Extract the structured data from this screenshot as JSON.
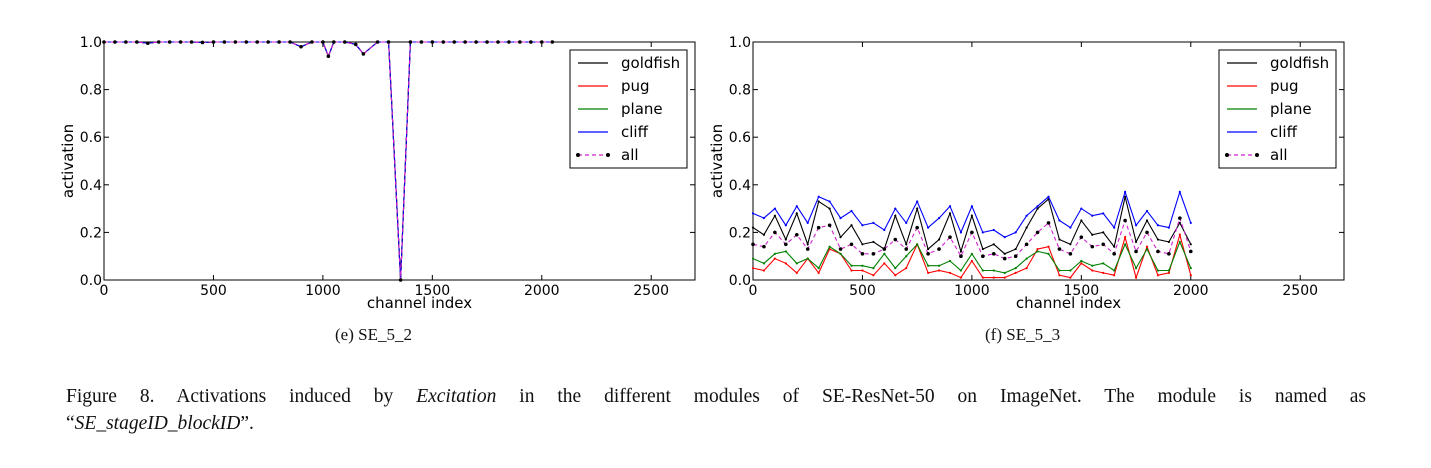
{
  "figure": {
    "label": "Figure 8.",
    "caption_pre": "Activations induced by ",
    "caption_em": "Excitation",
    "caption_mid": " in the different modules of SE-ResNet-50 on ImageNet.  The module is named as",
    "caption_open_quote": "“",
    "caption_em2": "SE_stageID_blockID",
    "caption_close": "”."
  },
  "colors": {
    "goldfish": "#000000",
    "pug": "#ff0000",
    "plane": "#008000",
    "cliff": "#0000ff",
    "all": "#d020d0"
  },
  "chart_data": [
    {
      "type": "line",
      "caption": "(e)  SE_5_2",
      "xlabel": "channel index",
      "ylabel": "activation",
      "xlim": [
        0,
        2700
      ],
      "ylim": [
        0,
        1.0
      ],
      "xticks": [
        "0",
        "500",
        "1000",
        "1500",
        "2000",
        "2500"
      ],
      "yticks": [
        "0.0",
        "0.2",
        "0.4",
        "0.6",
        "0.8",
        "1.0"
      ],
      "legend_position": "top-right",
      "x": [
        0,
        50,
        100,
        150,
        200,
        250,
        300,
        350,
        400,
        450,
        500,
        550,
        600,
        650,
        700,
        750,
        800,
        850,
        900,
        950,
        1000,
        1025,
        1050,
        1100,
        1150,
        1185,
        1250,
        1300,
        1355,
        1400,
        1450,
        1500,
        1550,
        1600,
        1650,
        1700,
        1750,
        1800,
        1850,
        1900,
        1950,
        2000,
        2048
      ],
      "series": [
        {
          "name": "goldfish",
          "values": [
            1,
            1,
            1,
            1,
            0.995,
            1,
            1,
            1,
            1,
            0.998,
            1,
            1,
            1,
            1,
            1,
            1,
            1,
            1,
            0.98,
            1,
            1,
            0.94,
            1,
            1,
            0.99,
            0.95,
            1,
            1,
            0.0,
            1,
            1,
            1,
            1,
            1,
            1,
            1,
            1,
            1,
            1,
            1,
            1,
            1,
            1
          ]
        },
        {
          "name": "pug",
          "values": [
            1,
            1,
            1,
            1,
            0.995,
            1,
            1,
            1,
            1,
            0.998,
            1,
            1,
            1,
            1,
            1,
            1,
            1,
            1,
            0.98,
            1,
            1,
            0.94,
            1,
            1,
            0.99,
            0.95,
            1,
            1,
            0.0,
            1,
            1,
            1,
            1,
            1,
            1,
            1,
            1,
            1,
            1,
            1,
            1,
            1,
            1
          ]
        },
        {
          "name": "plane",
          "values": [
            1,
            1,
            1,
            1,
            0.995,
            1,
            1,
            1,
            1,
            0.998,
            1,
            1,
            1,
            1,
            1,
            1,
            1,
            1,
            0.98,
            1,
            1,
            0.94,
            1,
            1,
            0.99,
            0.95,
            1,
            1,
            0.0,
            1,
            1,
            1,
            1,
            1,
            1,
            1,
            1,
            1,
            1,
            1,
            1,
            1,
            1
          ]
        },
        {
          "name": "cliff",
          "values": [
            1,
            1,
            1,
            1,
            0.995,
            1,
            1,
            1,
            1,
            0.998,
            1,
            1,
            1,
            1,
            1,
            1,
            1,
            1,
            0.98,
            1,
            1,
            0.94,
            1,
            1,
            0.99,
            0.95,
            1,
            1,
            0.0,
            1,
            1,
            1,
            1,
            1,
            1,
            1,
            1,
            1,
            1,
            1,
            1,
            1,
            1
          ]
        },
        {
          "name": "all",
          "values": [
            1,
            1,
            1,
            1,
            0.995,
            1,
            1,
            1,
            1,
            0.998,
            1,
            1,
            1,
            1,
            1,
            1,
            1,
            1,
            0.98,
            1,
            1,
            0.94,
            1,
            1,
            0.99,
            0.95,
            1,
            1,
            0.0,
            1,
            1,
            1,
            1,
            1,
            1,
            1,
            1,
            1,
            1,
            1,
            1,
            1,
            1
          ]
        }
      ]
    },
    {
      "type": "line",
      "caption": "(f)  SE_5_3",
      "xlabel": "channel index",
      "ylabel": "activation",
      "xlim": [
        0,
        2700
      ],
      "ylim": [
        0,
        1.0
      ],
      "xticks": [
        "0",
        "500",
        "1000",
        "1500",
        "2000",
        "2500"
      ],
      "yticks": [
        "0.0",
        "0.2",
        "0.4",
        "0.6",
        "0.8",
        "1.0"
      ],
      "legend_position": "top-right",
      "x": [
        0,
        50,
        100,
        150,
        200,
        250,
        300,
        350,
        400,
        450,
        500,
        550,
        600,
        650,
        700,
        750,
        800,
        850,
        900,
        950,
        1000,
        1050,
        1100,
        1150,
        1200,
        1250,
        1300,
        1350,
        1400,
        1450,
        1500,
        1550,
        1600,
        1650,
        1700,
        1750,
        1800,
        1850,
        1900,
        1950,
        2000
      ],
      "series": [
        {
          "name": "goldfish",
          "values": [
            0.22,
            0.19,
            0.27,
            0.17,
            0.28,
            0.15,
            0.33,
            0.3,
            0.18,
            0.23,
            0.15,
            0.16,
            0.13,
            0.27,
            0.15,
            0.3,
            0.13,
            0.17,
            0.28,
            0.12,
            0.27,
            0.13,
            0.15,
            0.11,
            0.13,
            0.22,
            0.3,
            0.34,
            0.17,
            0.15,
            0.25,
            0.19,
            0.2,
            0.14,
            0.35,
            0.16,
            0.25,
            0.17,
            0.16,
            0.24,
            0.15
          ]
        },
        {
          "name": "pug",
          "values": [
            0.05,
            0.04,
            0.09,
            0.07,
            0.03,
            0.09,
            0.03,
            0.13,
            0.11,
            0.04,
            0.04,
            0.02,
            0.07,
            0.02,
            0.05,
            0.15,
            0.03,
            0.04,
            0.03,
            0.01,
            0.08,
            0.01,
            0.01,
            0.01,
            0.03,
            0.05,
            0.13,
            0.14,
            0.02,
            0.01,
            0.07,
            0.04,
            0.03,
            0.02,
            0.18,
            0.01,
            0.14,
            0.02,
            0.03,
            0.19,
            0.02
          ]
        },
        {
          "name": "plane",
          "values": [
            0.09,
            0.07,
            0.11,
            0.12,
            0.07,
            0.09,
            0.05,
            0.14,
            0.11,
            0.06,
            0.06,
            0.05,
            0.11,
            0.05,
            0.1,
            0.15,
            0.06,
            0.06,
            0.08,
            0.04,
            0.11,
            0.04,
            0.04,
            0.03,
            0.05,
            0.09,
            0.12,
            0.11,
            0.04,
            0.04,
            0.08,
            0.06,
            0.07,
            0.04,
            0.15,
            0.05,
            0.13,
            0.04,
            0.04,
            0.16,
            0.05
          ]
        },
        {
          "name": "cliff",
          "values": [
            0.28,
            0.26,
            0.3,
            0.23,
            0.31,
            0.24,
            0.35,
            0.33,
            0.26,
            0.29,
            0.23,
            0.24,
            0.21,
            0.3,
            0.24,
            0.33,
            0.22,
            0.26,
            0.31,
            0.2,
            0.31,
            0.2,
            0.21,
            0.18,
            0.2,
            0.27,
            0.31,
            0.35,
            0.25,
            0.22,
            0.3,
            0.27,
            0.28,
            0.22,
            0.37,
            0.23,
            0.29,
            0.23,
            0.22,
            0.37,
            0.24
          ]
        },
        {
          "name": "all",
          "values": [
            0.15,
            0.14,
            0.2,
            0.15,
            0.19,
            0.13,
            0.22,
            0.23,
            0.13,
            0.15,
            0.11,
            0.11,
            0.13,
            0.17,
            0.13,
            0.22,
            0.11,
            0.13,
            0.18,
            0.1,
            0.2,
            0.1,
            0.11,
            0.09,
            0.1,
            0.15,
            0.2,
            0.24,
            0.13,
            0.11,
            0.18,
            0.14,
            0.15,
            0.11,
            0.25,
            0.12,
            0.2,
            0.12,
            0.11,
            0.26,
            0.12
          ]
        }
      ]
    }
  ]
}
